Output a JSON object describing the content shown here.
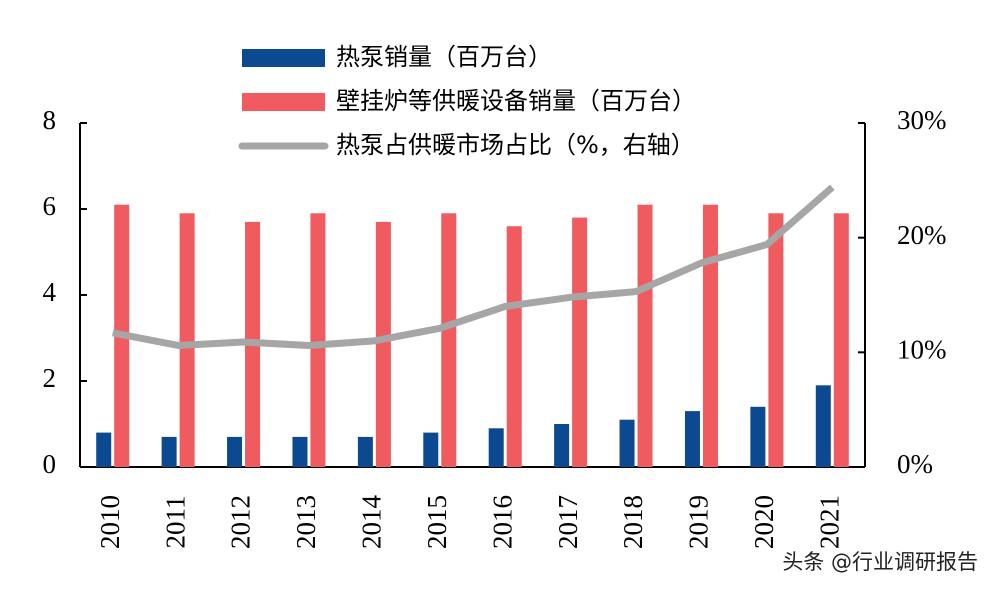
{
  "chart_data": {
    "type": "bar",
    "categories": [
      "2010",
      "2011",
      "2012",
      "2013",
      "2014",
      "2015",
      "2016",
      "2017",
      "2018",
      "2019",
      "2020",
      "2021"
    ],
    "series": [
      {
        "name": "热泵销量（百万台）",
        "color": "#0b4a91",
        "values": [
          0.8,
          0.7,
          0.7,
          0.7,
          0.7,
          0.8,
          0.9,
          1.0,
          1.1,
          1.3,
          1.4,
          1.9
        ]
      },
      {
        "name": "壁挂炉等供暖设备销量（百万台）",
        "color": "#ef5b5e",
        "values": [
          6.1,
          5.9,
          5.7,
          5.9,
          5.7,
          5.9,
          5.6,
          5.8,
          6.1,
          6.1,
          5.9,
          5.9
        ]
      },
      {
        "name": "热泵占供暖市场占比（%，右轴）",
        "color": "#a6a6a6",
        "type": "line",
        "axis": "y2",
        "values": [
          11.7,
          10.6,
          10.9,
          10.6,
          11.0,
          12.1,
          14.0,
          14.8,
          15.3,
          17.8,
          19.4,
          24.4
        ]
      }
    ],
    "ylim": [
      0,
      8
    ],
    "yticks": [
      0,
      2,
      4,
      6,
      8
    ],
    "y2lim": [
      0,
      30
    ],
    "y2ticks": [
      {
        "value": 0,
        "label": "0%"
      },
      {
        "value": 10,
        "label": "10%"
      },
      {
        "value": 20,
        "label": "20%"
      },
      {
        "value": 30,
        "label": "30%"
      }
    ],
    "watermark": "头条 @行业调研报告"
  }
}
